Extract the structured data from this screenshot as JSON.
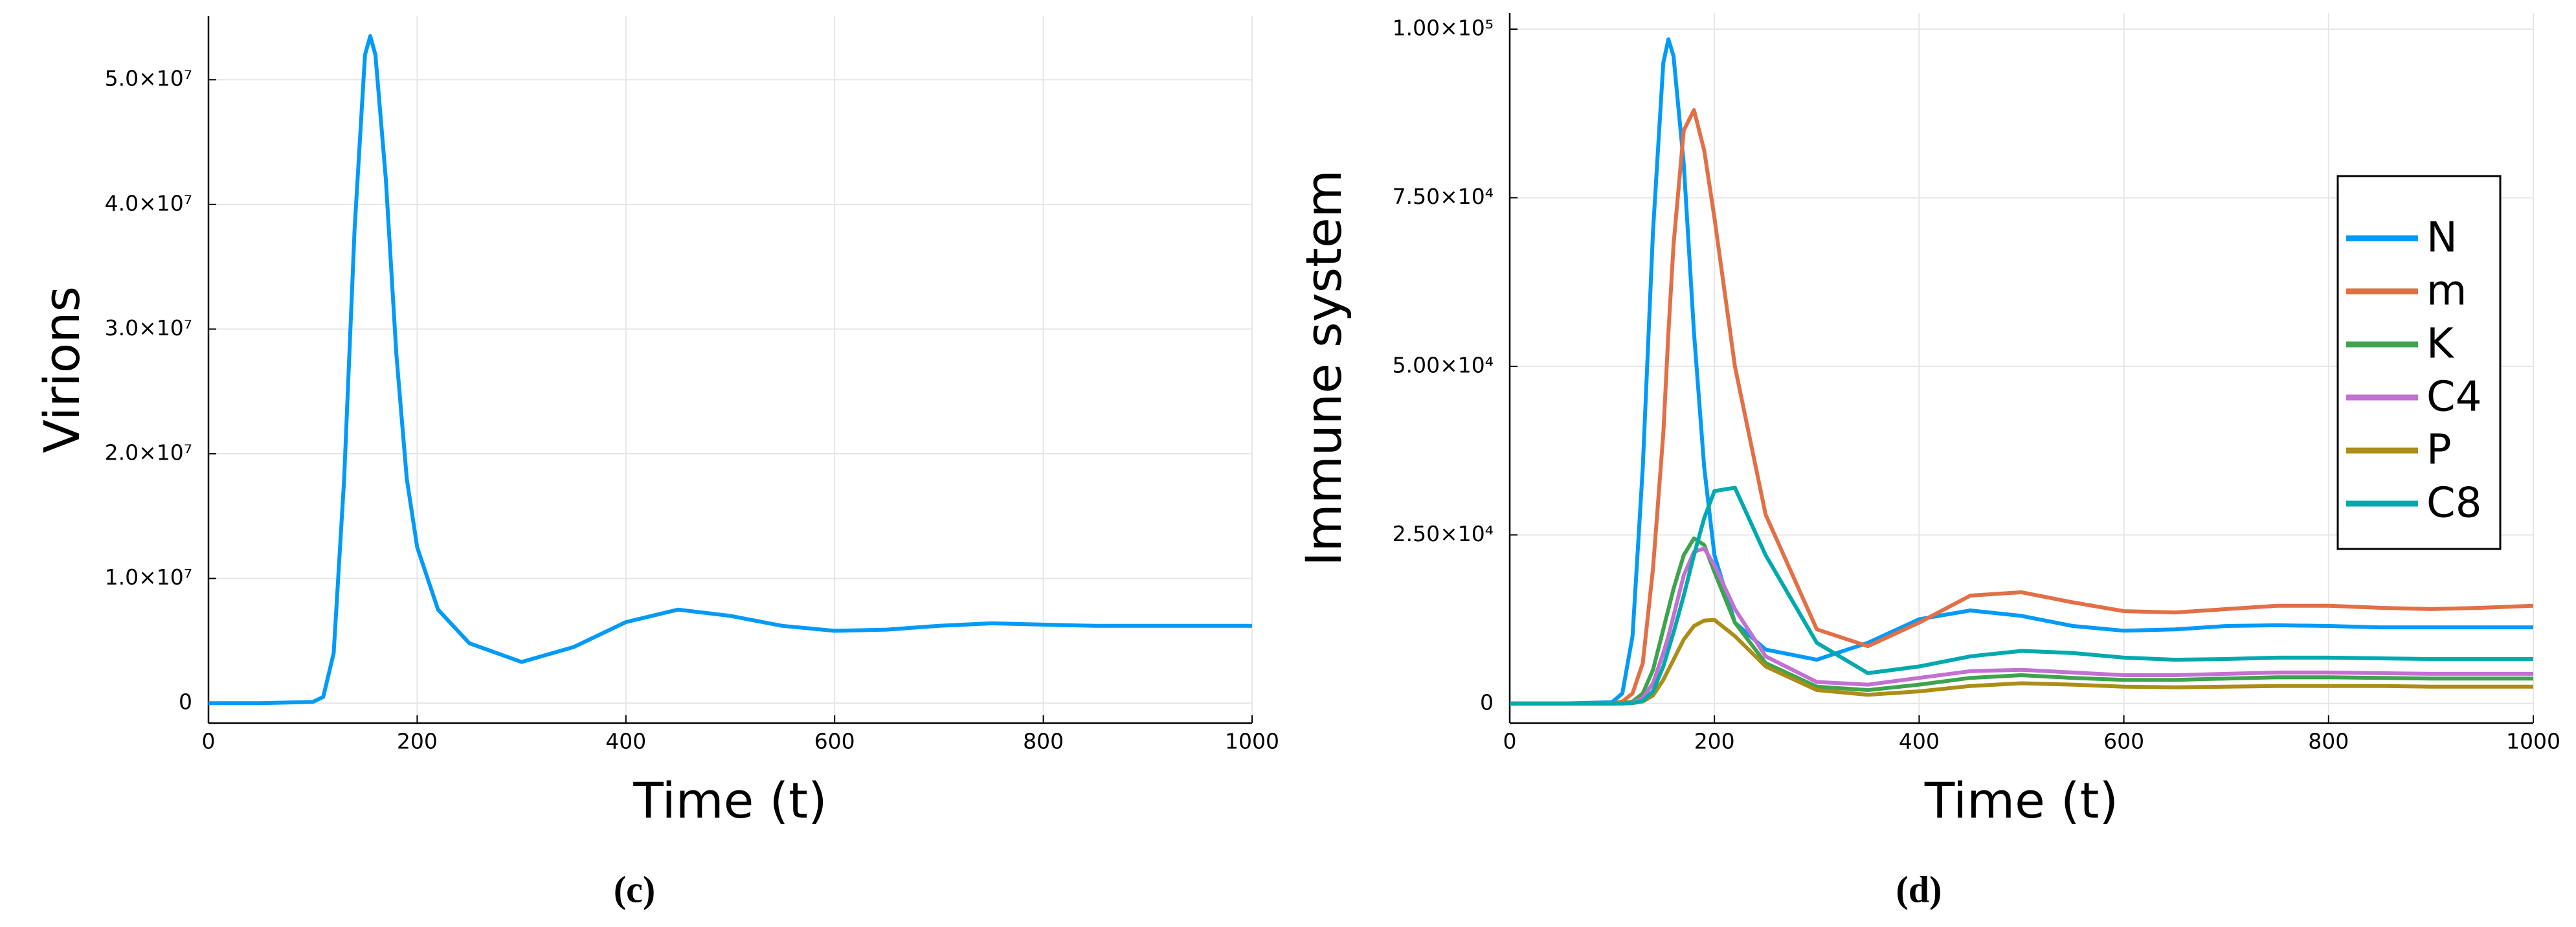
{
  "chart_data": [
    {
      "type": "line",
      "caption": "(c)",
      "x_label": "Time (t)",
      "y_label": "Virions",
      "x": [
        0,
        50,
        100,
        110,
        120,
        130,
        140,
        150,
        155,
        160,
        170,
        180,
        190,
        200,
        220,
        250,
        300,
        350,
        400,
        450,
        500,
        550,
        600,
        650,
        700,
        750,
        800,
        850,
        900,
        950,
        1000
      ],
      "values": [
        0,
        0,
        100000,
        500000,
        4000000,
        18000000,
        38000000,
        52000000,
        53500000,
        52000000,
        42000000,
        28000000,
        18000000,
        12500000,
        7500000,
        4800000,
        3300000,
        4500000,
        6500000,
        7500000,
        7000000,
        6200000,
        5800000,
        5900000,
        6200000,
        6400000,
        6300000,
        6200000,
        6200000,
        6200000,
        6200000
      ],
      "color": "#009af9",
      "xlim": [
        0,
        1000
      ],
      "xticks": [
        0,
        200,
        400,
        600,
        800,
        1000
      ],
      "ylim": [
        -1600000,
        55100000
      ],
      "yticks": [
        0,
        {
          "value": 10000000,
          "label": "1.0×10⁷"
        },
        {
          "value": 20000000,
          "label": "2.0×10⁷"
        },
        {
          "value": 30000000,
          "label": "3.0×10⁷"
        },
        {
          "value": 40000000,
          "label": "4.0×10⁷"
        },
        {
          "value": 50000000,
          "label": "5.0×10⁷"
        }
      ],
      "grid": true
    },
    {
      "type": "line",
      "caption": "(d)",
      "x_label": "Time (t)",
      "y_label": "Immune system",
      "x": [
        0,
        50,
        100,
        110,
        120,
        130,
        140,
        150,
        155,
        160,
        170,
        180,
        190,
        200,
        220,
        250,
        300,
        350,
        400,
        450,
        500,
        550,
        600,
        650,
        700,
        750,
        800,
        850,
        900,
        950,
        1000
      ],
      "series": [
        {
          "name": "N",
          "color": "#009af9",
          "values": [
            0,
            0,
            200,
            1500,
            10000,
            35000,
            70000,
            95000,
            98500,
            96000,
            80000,
            55000,
            35000,
            22000,
            12000,
            8000,
            6500,
            9000,
            12500,
            13800,
            13000,
            11500,
            10800,
            11000,
            11500,
            11600,
            11500,
            11300,
            11300,
            11300,
            11300
          ]
        },
        {
          "name": "m",
          "color": "#e26f46",
          "values": [
            0,
            0,
            50,
            300,
            1500,
            6000,
            20000,
            40000,
            55000,
            68000,
            85000,
            88000,
            82000,
            72000,
            50000,
            28000,
            11000,
            8500,
            12000,
            16000,
            16500,
            15000,
            13700,
            13500,
            14000,
            14500,
            14500,
            14200,
            14000,
            14200,
            14500
          ]
        },
        {
          "name": "K",
          "color": "#3da44d",
          "values": [
            0,
            0,
            0,
            50,
            300,
            1500,
            5000,
            11000,
            14000,
            17000,
            22000,
            24500,
            23500,
            19500,
            12000,
            6000,
            2500,
            2000,
            2800,
            3800,
            4200,
            3800,
            3500,
            3500,
            3700,
            3900,
            3900,
            3800,
            3700,
            3700,
            3700
          ]
        },
        {
          "name": "C4",
          "color": "#c271d2",
          "values": [
            0,
            0,
            0,
            30,
            150,
            800,
            3000,
            7500,
            10000,
            13000,
            19000,
            22500,
            23000,
            20500,
            14000,
            7000,
            3200,
            2800,
            3800,
            4800,
            5000,
            4600,
            4200,
            4200,
            4400,
            4600,
            4600,
            4500,
            4400,
            4400,
            4400
          ]
        },
        {
          "name": "P",
          "color": "#ac8d18",
          "values": [
            0,
            0,
            0,
            10,
            60,
            300,
            1200,
            3500,
            5000,
            6500,
            9500,
            11500,
            12300,
            12400,
            10000,
            5500,
            2000,
            1300,
            1800,
            2600,
            3000,
            2800,
            2500,
            2400,
            2500,
            2600,
            2600,
            2600,
            2500,
            2500,
            2500
          ]
        },
        {
          "name": "C8",
          "color": "#00a9ad",
          "values": [
            0,
            0,
            0,
            10,
            80,
            400,
            1800,
            5500,
            8000,
            10500,
            16000,
            22000,
            27500,
            31500,
            32000,
            22000,
            9000,
            4500,
            5500,
            7000,
            7800,
            7500,
            6800,
            6500,
            6600,
            6800,
            6800,
            6700,
            6600,
            6600,
            6600
          ]
        }
      ],
      "xlim": [
        0,
        1000
      ],
      "xticks": [
        0,
        200,
        400,
        600,
        800,
        1000
      ],
      "ylim": [
        -2900,
        102400
      ],
      "yticks": [
        0,
        {
          "value": 25000,
          "label": "2.50×10⁴"
        },
        {
          "value": 50000,
          "label": "5.00×10⁴"
        },
        {
          "value": 75000,
          "label": "7.50×10⁴"
        },
        {
          "value": 100000,
          "label": "1.00×10⁵"
        }
      ],
      "grid": true,
      "legend": "right"
    }
  ]
}
